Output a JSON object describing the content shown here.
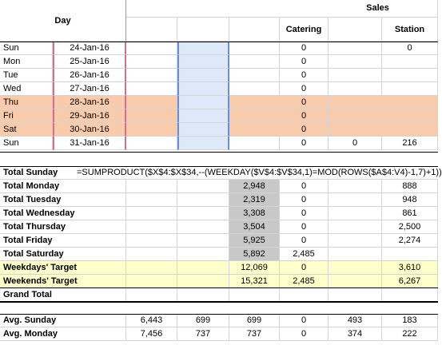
{
  "header": {
    "day": "Day",
    "sales": "Sales",
    "columns": [
      null,
      null,
      null,
      "Catering",
      null,
      "Station"
    ]
  },
  "daily_rows": [
    {
      "weekday": "Sun",
      "date": "24-Jan-16",
      "cells": [
        null,
        null,
        null,
        "0",
        null,
        "0"
      ]
    },
    {
      "weekday": "Mon",
      "date": "25-Jan-16",
      "cells": [
        null,
        null,
        null,
        "0",
        null,
        null
      ]
    },
    {
      "weekday": "Tue",
      "date": "26-Jan-16",
      "cells": [
        null,
        null,
        null,
        "0",
        null,
        null
      ]
    },
    {
      "weekday": "Wed",
      "date": "27-Jan-16",
      "cells": [
        null,
        null,
        null,
        "0",
        null,
        null
      ]
    },
    {
      "weekday": "Thu",
      "date": "28-Jan-16",
      "cells": [
        null,
        null,
        null,
        "0",
        null,
        null
      ]
    },
    {
      "weekday": "Fri",
      "date": "29-Jan-16",
      "cells": [
        null,
        null,
        null,
        "0",
        null,
        null
      ]
    },
    {
      "weekday": "Sat",
      "date": "30-Jan-16",
      "cells": [
        null,
        null,
        null,
        "0",
        null,
        null
      ]
    },
    {
      "weekday": "Sun",
      "date": "31-Jan-16",
      "cells": [
        null,
        null,
        null,
        "0",
        "0",
        "216"
      ]
    }
  ],
  "formula_row": {
    "label": "Total Sunday",
    "formula": "=SUMPRODUCT($X$4:$X$34,--(WEEKDAY($V$4:$V$34,1)=MOD(ROWS($A$4:V4)-1,7)+1))"
  },
  "total_rows": [
    {
      "label": "Total Monday",
      "cells": [
        null,
        null,
        "2,948",
        "0",
        null,
        "888"
      ]
    },
    {
      "label": "Total Tuesday",
      "cells": [
        null,
        null,
        "2,319",
        "0",
        null,
        "948"
      ]
    },
    {
      "label": "Total Wednesday",
      "cells": [
        null,
        null,
        "3,308",
        "0",
        null,
        "861"
      ]
    },
    {
      "label": "Total Thursday",
      "cells": [
        null,
        null,
        "3,504",
        "0",
        null,
        "2,500"
      ]
    },
    {
      "label": "Total Friday",
      "cells": [
        null,
        null,
        "5,925",
        "0",
        null,
        "2,274"
      ]
    },
    {
      "label": "Total Saturday",
      "cells": [
        null,
        null,
        "5,892",
        "2,485",
        null,
        null
      ]
    },
    {
      "label": "Weekdays' Target",
      "cells": [
        null,
        null,
        "12,069",
        "0",
        null,
        "3,610"
      ]
    },
    {
      "label": "Weekends' Target",
      "cells": [
        null,
        null,
        "15,321",
        "2,485",
        null,
        "6,267"
      ]
    },
    {
      "label": "Grand Total",
      "cells": [
        null,
        null,
        null,
        null,
        null,
        null
      ]
    }
  ],
  "avg_rows": [
    {
      "label": "Avg. Sunday",
      "cells": [
        "6,443",
        "699",
        "699",
        "0",
        "493",
        "183"
      ]
    },
    {
      "label": "Avg. Monday",
      "cells": [
        "7,456",
        "737",
        "737",
        "0",
        "374",
        "222"
      ]
    }
  ]
}
